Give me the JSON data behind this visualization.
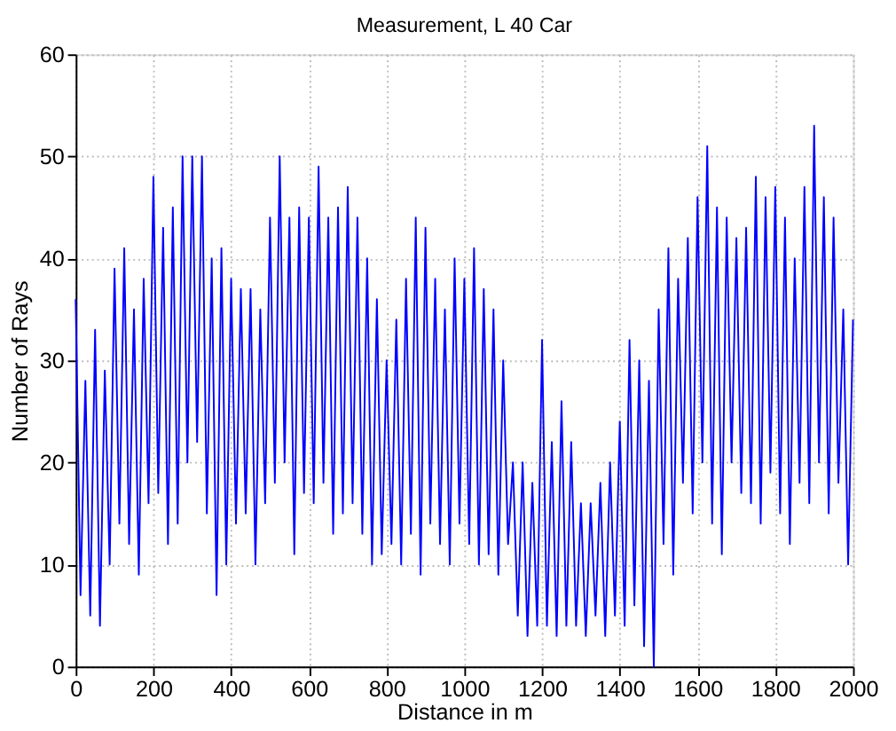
{
  "chart_data": {
    "type": "line",
    "title": "Measurement, L 40 Car",
    "xlabel": "Distance in m",
    "ylabel": "Number of Rays",
    "x": [
      0,
      12.5,
      25,
      37.5,
      50,
      62.5,
      75,
      87.5,
      100,
      112.5,
      125,
      137.5,
      150,
      162.5,
      175,
      187.5,
      200,
      212.5,
      225,
      237.5,
      250,
      262.5,
      275,
      287.5,
      300,
      312.5,
      325,
      337.5,
      350,
      362.5,
      375,
      387.5,
      400,
      412.5,
      425,
      437.5,
      450,
      462.5,
      475,
      487.5,
      500,
      512.5,
      525,
      537.5,
      550,
      562.5,
      575,
      587.5,
      600,
      612.5,
      625,
      637.5,
      650,
      662.5,
      675,
      687.5,
      700,
      712.5,
      725,
      737.5,
      750,
      762.5,
      775,
      787.5,
      800,
      812.5,
      825,
      837.5,
      850,
      862.5,
      875,
      887.5,
      900,
      912.5,
      925,
      937.5,
      950,
      962.5,
      975,
      987.5,
      1000,
      1012.5,
      1025,
      1037.5,
      1050,
      1062.5,
      1075,
      1087.5,
      1100,
      1112.5,
      1125,
      1137.5,
      1150,
      1162.5,
      1175,
      1187.5,
      1200,
      1212.5,
      1225,
      1237.5,
      1250,
      1262.5,
      1275,
      1287.5,
      1300,
      1312.5,
      1325,
      1337.5,
      1350,
      1362.5,
      1375,
      1387.5,
      1400,
      1412.5,
      1425,
      1437.5,
      1450,
      1462.5,
      1475,
      1487.5,
      1500,
      1512.5,
      1525,
      1537.5,
      1550,
      1562.5,
      1575,
      1587.5,
      1600,
      1612.5,
      1625,
      1637.5,
      1650,
      1662.5,
      1675,
      1687.5,
      1700,
      1712.5,
      1725,
      1737.5,
      1750,
      1762.5,
      1775,
      1787.5,
      1800,
      1812.5,
      1825,
      1837.5,
      1850,
      1862.5,
      1875,
      1887.5,
      1900,
      1912.5,
      1925,
      1937.5,
      1950,
      1962.5,
      1975,
      1987.5,
      2000
    ],
    "series": [
      {
        "color": "#0000ff",
        "values": [
          36,
          7,
          28,
          5,
          33,
          4,
          29,
          10,
          39,
          14,
          41,
          12,
          35,
          9,
          38,
          16,
          48,
          17,
          43,
          12,
          45,
          14,
          50,
          20,
          50,
          22,
          50,
          15,
          40,
          7,
          41,
          10,
          38,
          14,
          37,
          15,
          37,
          10,
          35,
          16,
          44,
          18,
          50,
          20,
          44,
          11,
          45,
          17,
          44,
          16,
          49,
          18,
          44,
          13,
          45,
          15,
          47,
          16,
          44,
          13,
          40,
          10,
          36,
          11,
          30,
          12,
          34,
          10,
          38,
          13,
          44,
          9,
          43,
          14,
          38,
          12,
          35,
          10,
          40,
          14,
          38,
          12,
          41,
          10,
          37,
          11,
          35,
          9,
          30,
          12,
          20,
          5,
          20,
          3,
          18,
          4,
          32,
          4,
          22,
          3,
          26,
          4,
          22,
          4,
          16,
          3,
          16,
          5,
          18,
          3,
          20,
          5,
          24,
          4,
          32,
          6,
          30,
          2,
          28,
          0,
          35,
          12,
          41,
          9,
          38,
          18,
          42,
          15,
          46,
          20,
          51,
          14,
          45,
          11,
          44,
          20,
          42,
          17,
          43,
          16,
          48,
          14,
          46,
          19,
          47,
          15,
          44,
          12,
          40,
          18,
          47,
          16,
          53,
          20,
          46,
          15,
          44,
          18,
          35,
          10,
          34
        ]
      }
    ],
    "xlim": [
      0,
      2000
    ],
    "xticks": [
      0,
      200,
      400,
      600,
      800,
      1000,
      1200,
      1400,
      1600,
      1800,
      2000
    ],
    "ylim": [
      0,
      60
    ],
    "yticks": [
      0,
      10,
      20,
      30,
      40,
      50,
      60
    ],
    "grid": true,
    "legend": false,
    "marker": "none",
    "line_style": "solid"
  }
}
